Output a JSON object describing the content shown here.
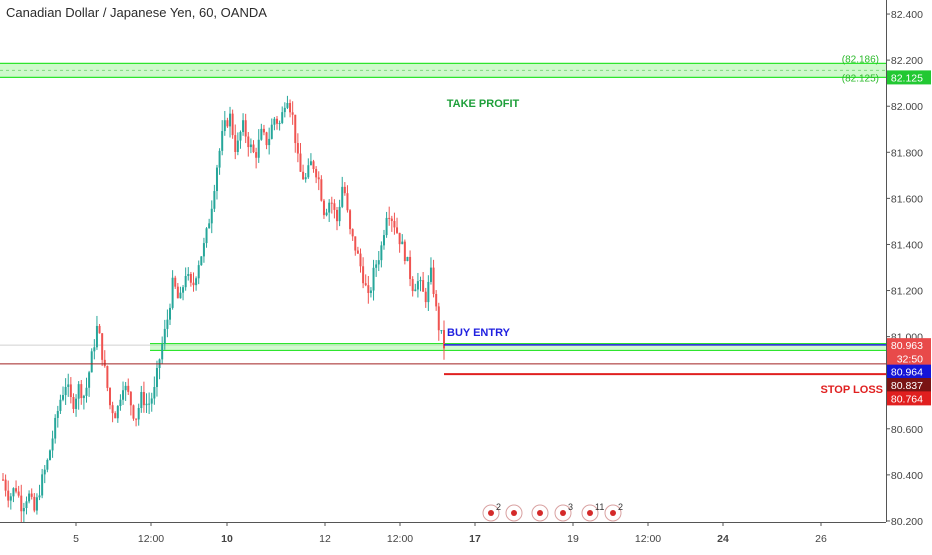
{
  "title": "Canadian Dollar / Japanese Yen, 60, OANDA",
  "colors": {
    "up": "#26a69a",
    "down": "#ef5350",
    "zone_fill": "#a5f5a0",
    "zone_line": "#2ee52e",
    "take_profit_text": "#1e9f3a",
    "buy_entry": "#2020e0",
    "stop_loss": "#e02020",
    "axis_text": "#444444",
    "grid": "#e6e6e6"
  },
  "chart_data": {
    "type": "candlestick",
    "y_range": [
      80.1,
      82.5
    ],
    "y_ticks": [
      "82.400",
      "82.200",
      "82.000",
      "81.800",
      "81.600",
      "81.400",
      "81.200",
      "81.000",
      "80.800",
      "80.600",
      "80.400",
      "80.200"
    ],
    "x_ticks": [
      "5",
      "12:00",
      "10",
      "12",
      "12:00",
      "17",
      "19",
      "12:00",
      "24",
      "26"
    ],
    "x_ticks_bold": [
      "10",
      "17",
      "24"
    ],
    "candles_path": [
      80.38,
      80.3,
      80.35,
      80.26,
      80.32,
      80.24,
      80.36,
      80.45,
      80.58,
      80.72,
      80.8,
      80.7,
      80.78,
      80.74,
      80.9,
      81.05,
      80.88,
      80.7,
      80.66,
      80.8,
      80.74,
      80.64,
      80.74,
      80.7,
      80.76,
      80.93,
      81.06,
      81.24,
      81.14,
      81.28,
      81.2,
      81.32,
      81.4,
      81.55,
      81.75,
      81.9,
      81.96,
      81.8,
      81.92,
      81.84,
      81.78,
      81.88,
      81.84,
      81.95,
      81.92,
      82.06,
      81.95,
      81.72,
      81.68,
      81.76,
      81.7,
      81.54,
      81.6,
      81.5,
      81.68,
      81.46,
      81.38,
      81.28,
      81.16,
      81.3,
      81.38,
      81.56,
      81.5,
      81.42,
      81.34,
      81.22,
      81.24,
      81.16,
      81.28,
      81.06,
      80.96
    ],
    "levels": [
      {
        "name": "take-profit-zone-top",
        "price": 82.186,
        "label": "(82.186)"
      },
      {
        "name": "take-profit-zone-bottom",
        "price": 82.125,
        "label": "(82.125)"
      },
      {
        "name": "buy-zone-top",
        "price": 80.97,
        "label": ""
      },
      {
        "name": "buy-zone-bottom",
        "price": 80.94,
        "label": ""
      }
    ],
    "annotations": {
      "take_profit": "TAKE PROFIT",
      "buy_entry": "BUY ENTRY",
      "stop_loss": "STOP LOSS",
      "buy_entry_price": 80.964,
      "stop_loss_price": 80.837,
      "red_line_price": 80.882
    },
    "price_tags": [
      {
        "name": "tag-take-profit",
        "text": "82.125",
        "price": 82.125,
        "bg": "#22c832",
        "fg": "#ffffff"
      },
      {
        "name": "tag-last-price",
        "text": "80.963",
        "price": 80.963,
        "bg": "#e84a4a",
        "fg": "#ffffff"
      },
      {
        "name": "tag-countdown",
        "text": "32:50",
        "price": 80.905,
        "bg": "#e84a4a",
        "fg": "#ffffff"
      },
      {
        "name": "tag-buy-entry",
        "text": "80.964",
        "price": 80.848,
        "bg": "#1515d8",
        "fg": "#ffffff"
      },
      {
        "name": "tag-stop-loss",
        "text": "80.837",
        "price": 80.79,
        "bg": "#7a1414",
        "fg": "#ffffff"
      },
      {
        "name": "tag-stop-limit",
        "text": "80.764",
        "price": 80.732,
        "bg": "#e01f1f",
        "fg": "#ffffff"
      }
    ],
    "events": [
      {
        "name": "event-cad-flag-1",
        "count": "2"
      },
      {
        "name": "event-jpy-flag-1",
        "count": ""
      },
      {
        "name": "event-cad-flag-2",
        "count": ""
      },
      {
        "name": "event-jpy-flag-2",
        "count": "3"
      },
      {
        "name": "event-cad-flag-3",
        "count": "11"
      },
      {
        "name": "event-mixed-flag",
        "count": "2"
      }
    ]
  }
}
